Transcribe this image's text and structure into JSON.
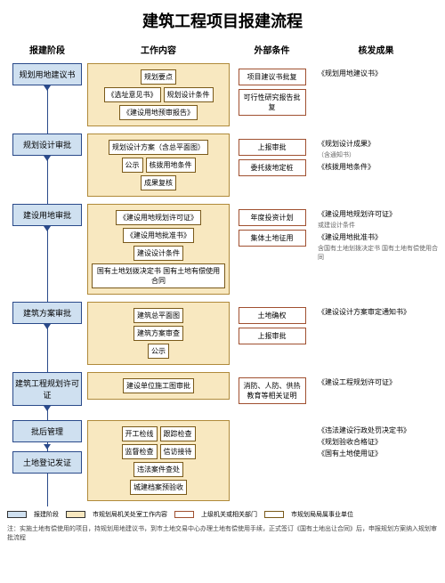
{
  "title": "建筑工程项目报建流程",
  "columns": [
    "报建阶段",
    "工作内容",
    "外部条件",
    "核发成果"
  ],
  "colors": {
    "stage_fill": "#cfe0f0",
    "stage_border": "#2a4a8a",
    "work_fill": "#f8e8c0",
    "work_border": "#b08a3a",
    "inner_border": "#7a5a1a",
    "ext_border": "#a05030",
    "background": "#ffffff"
  },
  "rows": [
    {
      "stage": "规划用地建议书",
      "work": {
        "rows": [
          [
            "规划要点"
          ],
          [
            "《选址意见书》",
            "规划设计条件"
          ],
          [
            "《建设用地预审报告》"
          ]
        ]
      },
      "ext": [
        "项目建议书批复",
        "可行性研究报告批复"
      ],
      "out": [
        {
          "t": "《规划用地建议书》"
        }
      ]
    },
    {
      "stage": "规划设计审批",
      "work": {
        "rows": [
          [
            "规划设计方案（含总平面图）"
          ],
          [
            "公示",
            "核拨用地条件"
          ],
          [
            "成果复核"
          ]
        ]
      },
      "ext": [
        "上报审批",
        "委托拨地定桩"
      ],
      "out": [
        {
          "t": "《规划设计成果》",
          "s": "（含通知书）"
        },
        {
          "t": "《核拨用地条件》"
        }
      ]
    },
    {
      "stage": "建设用地审批",
      "work": {
        "rows": [
          [
            "《建设用地规划许可证》",
            "《建设用地批准书》"
          ],
          [
            "建设设计条件",
            "国有土地划拨决定书 国有土地有偿使用合同"
          ]
        ]
      },
      "ext": [
        "年度投资计划",
        "集体土地征用"
      ],
      "out": [
        {
          "t": "《建设用地规划许可证》",
          "s": "或建设计条件"
        },
        {
          "t": "《建设用地批准书》",
          "s": "含国有土地划拨决定书 国有土地有偿使用合同"
        }
      ]
    },
    {
      "stage": "建筑方案审批",
      "work": {
        "rows": [
          [
            "建筑总平面图"
          ],
          [
            "建筑方案审查"
          ],
          [
            "公示"
          ]
        ]
      },
      "ext": [
        "土地确权",
        "上报审批"
      ],
      "out": [
        {
          "t": "《建设设计方案审定通知书》"
        }
      ]
    },
    {
      "stage": "建筑工程规划许可证",
      "work": {
        "rows": [
          [
            "建设单位施工图审批"
          ]
        ]
      },
      "ext": [
        "消防、人防、供热 教育等相关证明"
      ],
      "out": [
        {
          "t": "《建设工程规划许可证》"
        }
      ]
    },
    {
      "stage": "批后管理",
      "stage2": "土地登记发证",
      "work": {
        "rows": [
          [
            "开工检线",
            "跟踪检查"
          ],
          [
            "监督检查",
            "信访接待"
          ],
          [
            "违法案件查处"
          ],
          [
            "城建档案预验收"
          ]
        ]
      },
      "ext": [],
      "out": [
        {
          "t": "《违法建设行政处罚决定书》"
        },
        {
          "t": "《规划验收合格证》"
        },
        {
          "t": "《国有土地使用证》"
        }
      ]
    }
  ],
  "legend": [
    {
      "color": "#cfe0f0",
      "label": "报建阶段"
    },
    {
      "color": "#f8e8c0",
      "label": "市规划局机关处室工作内容"
    },
    {
      "color": "#ffffff",
      "label": "上级机关或相关部门",
      "border": "#a05030"
    },
    {
      "color": "#ffffff",
      "label": "市规划局局属事业单位",
      "border": "#7a5a1a"
    }
  ],
  "note": "注：实施土地有偿使用的项目，持规划用地建议书，到市土地交易中心办理土地有偿使用手续，正式签订《国有土地出让合同》后，申报规划方案纳入规划审批流程"
}
